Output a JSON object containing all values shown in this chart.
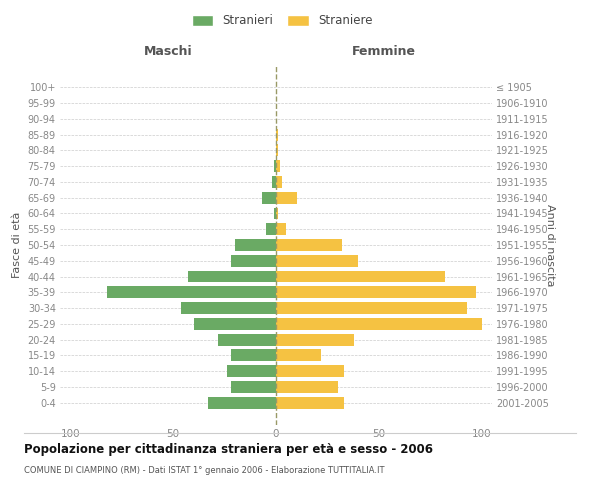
{
  "age_groups": [
    "100+",
    "95-99",
    "90-94",
    "85-89",
    "80-84",
    "75-79",
    "70-74",
    "65-69",
    "60-64",
    "55-59",
    "50-54",
    "45-49",
    "40-44",
    "35-39",
    "30-34",
    "25-29",
    "20-24",
    "15-19",
    "10-14",
    "5-9",
    "0-4"
  ],
  "birth_years": [
    "≤ 1905",
    "1906-1910",
    "1911-1915",
    "1916-1920",
    "1921-1925",
    "1926-1930",
    "1931-1935",
    "1936-1940",
    "1941-1945",
    "1946-1950",
    "1951-1955",
    "1956-1960",
    "1961-1965",
    "1966-1970",
    "1971-1975",
    "1976-1980",
    "1981-1985",
    "1986-1990",
    "1991-1995",
    "1996-2000",
    "2001-2005"
  ],
  "males": [
    0,
    0,
    0,
    0,
    0,
    1,
    2,
    7,
    1,
    5,
    20,
    22,
    43,
    82,
    46,
    40,
    28,
    22,
    24,
    22,
    33
  ],
  "females": [
    0,
    0,
    0,
    1,
    1,
    2,
    3,
    10,
    1,
    5,
    32,
    40,
    82,
    97,
    93,
    100,
    38,
    22,
    33,
    30,
    33
  ],
  "color_male": "#6aaa64",
  "color_female": "#f5c242",
  "background_color": "#ffffff",
  "grid_color": "#cccccc",
  "title": "Popolazione per cittadinanza straniera per età e sesso - 2006",
  "subtitle": "COMUNE DI CIAMPINO (RM) - Dati ISTAT 1° gennaio 2006 - Elaborazione TUTTITALIA.IT",
  "xlabel_left": "Maschi",
  "xlabel_right": "Femmine",
  "ylabel_left": "Fasce di età",
  "ylabel_right": "Anni di nascita",
  "legend_male": "Stranieri",
  "legend_female": "Straniere",
  "xlim": 105,
  "tick_color": "#888888"
}
